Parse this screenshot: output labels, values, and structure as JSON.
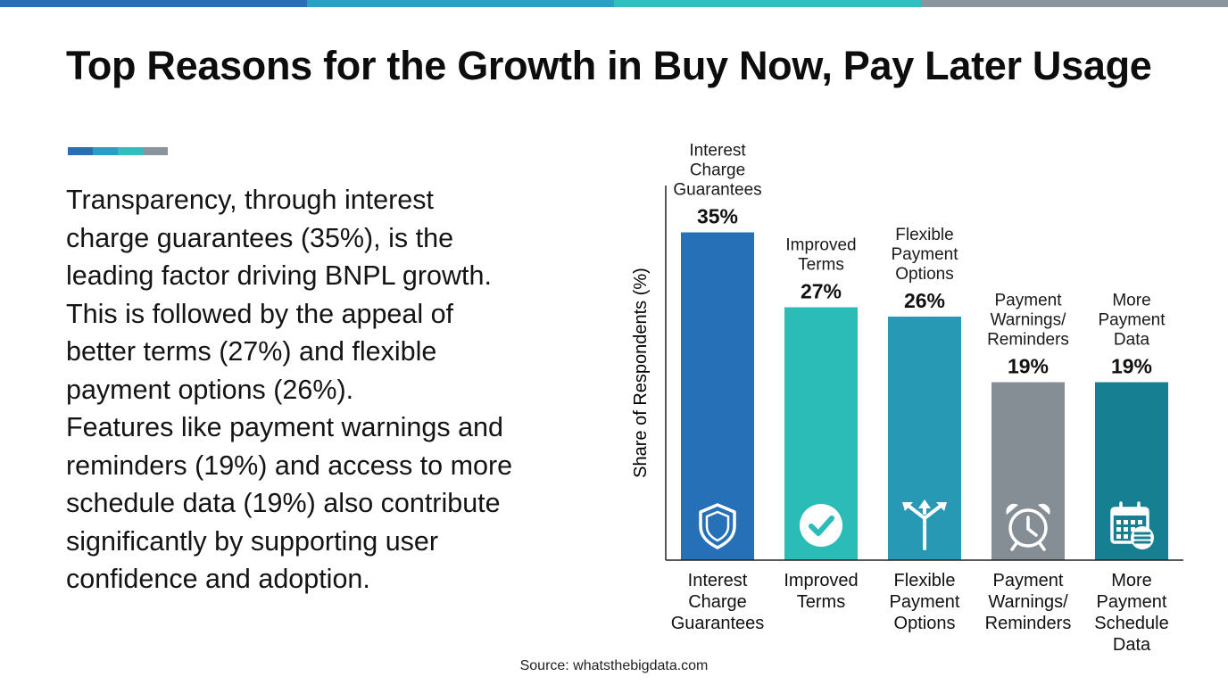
{
  "title": "Top Reasons for the Growth in Buy Now, Pay Later Usage",
  "top_strip_colors": [
    "#2a6fb5",
    "#2aa0c2",
    "#2ebfbe",
    "#8a949c"
  ],
  "accent_colors": [
    "#2a6fb5",
    "#2a9fc4",
    "#2ebfbe",
    "#8a949c"
  ],
  "summary": [
    "Transparency, through interest",
    "charge guarantees (35%), is the",
    "leading factor driving BNPL growth.",
    "This is followed by the appeal of",
    "better terms (27%) and flexible",
    "payment options (26%).",
    "Features like payment warnings and",
    "reminders (19%) and access to more",
    "schedule data (19%) also contribute",
    "significantly by supporting user",
    "confidence and adoption."
  ],
  "source": "Source: whatsthebigdata.com",
  "chart_data": {
    "type": "bar",
    "title": "Top Reasons for the Growth in Buy Now, Pay Later Usage",
    "xlabel": "",
    "ylabel": "Share of Respondents (%)",
    "ylim": [
      0,
      40
    ],
    "unit": "%",
    "categories": [
      "Interest Charge Guarantees",
      "Improved Terms",
      "Flexible Payment Options",
      "Payment Warnings/ Reminders",
      "More Payment Schedule Data"
    ],
    "values": [
      35,
      27,
      26,
      19,
      19
    ],
    "value_labels": [
      "35%",
      "27%",
      "26%",
      "19%",
      "19%"
    ],
    "top_labels": [
      [
        "Interest",
        "Charge",
        "Guarantees"
      ],
      [
        "Improved",
        "Terms"
      ],
      [
        "Flexible",
        "Payment",
        "Options"
      ],
      [
        "Payment",
        "Warnings/",
        "Reminders"
      ],
      [
        "More",
        "Payment",
        "Data"
      ]
    ],
    "bottom_labels": [
      [
        "Interest",
        "Charge",
        "Guarantees"
      ],
      [
        "Improved",
        "Terms"
      ],
      [
        "Flexible",
        "Payment",
        "Options"
      ],
      [
        "Payment",
        "Warnings/",
        "Reminders"
      ],
      [
        "More",
        "Payment",
        "Schedule",
        "Data"
      ]
    ],
    "colors": [
      "#2670b8",
      "#2bbcb8",
      "#2799b4",
      "#868e95",
      "#167f91"
    ],
    "icons": [
      "shield-icon",
      "checkmark-icon",
      "split-arrows-icon",
      "alarm-clock-icon",
      "calendar-database-icon"
    ]
  }
}
